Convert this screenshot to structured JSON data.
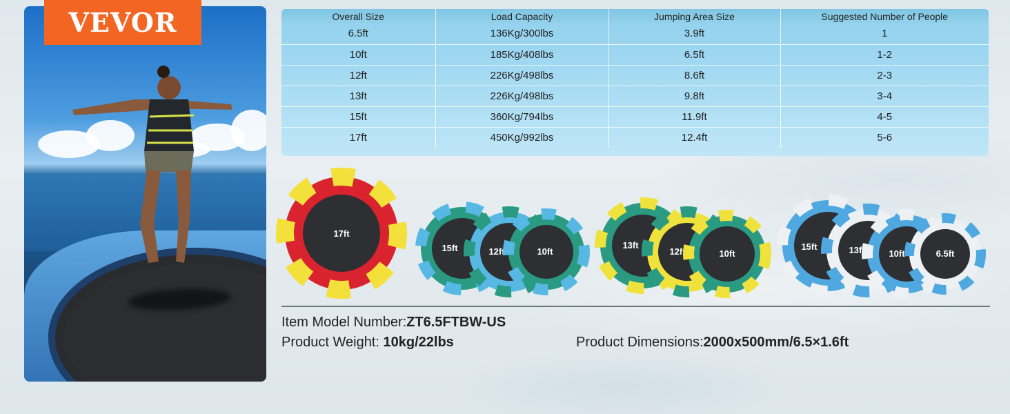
{
  "brand": {
    "logo_text": "VEVOR",
    "logo_color": "#f26522"
  },
  "table": {
    "headers": [
      "Overall Size",
      "Load Capacity",
      "Jumping Area Size",
      "Suggested Number of People"
    ],
    "rows": [
      [
        "6.5ft",
        "136Kg/300lbs",
        "3.9ft",
        "1"
      ],
      [
        "10ft",
        "185Kg/408lbs",
        "6.5ft",
        "1-2"
      ],
      [
        "12ft",
        "226Kg/498lbs",
        "8.6ft",
        "2-3"
      ],
      [
        "13ft",
        "226Kg/498lbs",
        "9.8ft",
        "3-4"
      ],
      [
        "15ft",
        "360Kg/794lbs",
        "11.9ft",
        "4-5"
      ],
      [
        "17ft",
        "450Kg/992lbs",
        "12.4ft",
        "5-6"
      ]
    ]
  },
  "trampolines": {
    "red_yellow": [
      "17ft"
    ],
    "green_blue": [
      "15ft",
      "12ft",
      "10ft"
    ],
    "green_yellow": [
      "13ft",
      "12ft",
      "10ft"
    ],
    "blue_white": [
      "15ft",
      "13ft",
      "10ft",
      "6.5ft"
    ]
  },
  "specs": {
    "model_label": "Item Model Number:",
    "model_value": "ZT6.5FTBW-US",
    "weight_label": "Product Weight:",
    "weight_value": "10kg/22lbs",
    "dimensions_label": "Product Dimensions:",
    "dimensions_value": "2000x500mm/6.5×1.6ft"
  }
}
